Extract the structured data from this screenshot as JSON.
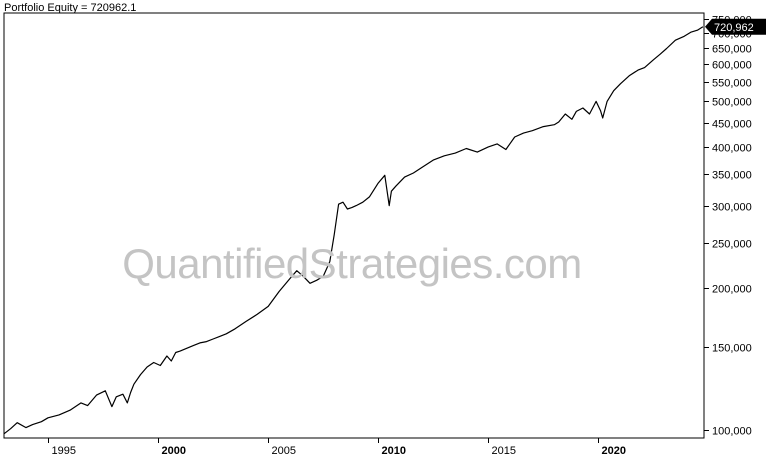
{
  "header": {
    "title": "Portfolio Equity = 720962.1"
  },
  "watermark": "QuantifiedStrategies.com",
  "colors": {
    "line": "#000000",
    "frame": "#000000",
    "background": "#ffffff",
    "watermark": "#c4c4c4",
    "last_value_bg": "#000000",
    "last_value_text": "#ffffff"
  },
  "chart_data": {
    "type": "line",
    "title": "Portfolio Equity = 720962.1",
    "xlabel": "",
    "ylabel": "",
    "log_scale_y": true,
    "grid": false,
    "xlim": [
      1993.0,
      2024.8
    ],
    "ylim": [
      96000,
      760000
    ],
    "x_ticks": [
      {
        "value": 1995,
        "label": "1995",
        "bold": false
      },
      {
        "value": 2000,
        "label": "2000",
        "bold": true
      },
      {
        "value": 2005,
        "label": "2005",
        "bold": false
      },
      {
        "value": 2010,
        "label": "2010",
        "bold": true
      },
      {
        "value": 2015,
        "label": "2015",
        "bold": false
      },
      {
        "value": 2020,
        "label": "2020",
        "bold": true
      }
    ],
    "y_ticks": [
      {
        "value": 100000,
        "label": "100,000"
      },
      {
        "value": 150000,
        "label": "150,000"
      },
      {
        "value": 200000,
        "label": "200,000"
      },
      {
        "value": 250000,
        "label": "250,000"
      },
      {
        "value": 300000,
        "label": "300,000"
      },
      {
        "value": 350000,
        "label": "350,000"
      },
      {
        "value": 400000,
        "label": "400,000"
      },
      {
        "value": 450000,
        "label": "450,000"
      },
      {
        "value": 500000,
        "label": "500,000"
      },
      {
        "value": 550000,
        "label": "550,000"
      },
      {
        "value": 600000,
        "label": "600,000"
      },
      {
        "value": 650000,
        "label": "650,000"
      },
      {
        "value": 700000,
        "label": "700,000"
      },
      {
        "value": 750000,
        "label": "750,000"
      }
    ],
    "last_value_label": "720,962",
    "last_value": 720962,
    "series": [
      {
        "x": [
          1993.0,
          1993.3,
          1993.6,
          1994.0,
          1994.3,
          1994.7,
          1995.0,
          1995.5,
          1996.0,
          1996.5,
          1996.8,
          1997.2,
          1997.6,
          1997.9,
          1998.1,
          1998.4,
          1998.6,
          1998.75,
          1998.9,
          1999.2,
          1999.5,
          1999.8,
          2000.1,
          2000.4,
          2000.6,
          2000.8,
          2001.0,
          2001.3,
          2001.6,
          2001.9,
          2002.2,
          2002.5,
          2002.8,
          2003.1,
          2003.5,
          2004.0,
          2004.5,
          2005.0,
          2005.5,
          2006.0,
          2006.3,
          2006.6,
          2006.9,
          2007.2,
          2007.5,
          2007.8,
          2008.0,
          2008.2,
          2008.4,
          2008.6,
          2008.8,
          2009.0,
          2009.3,
          2009.6,
          2010.0,
          2010.3,
          2010.5,
          2010.6,
          2010.8,
          2011.2,
          2011.6,
          2012.0,
          2012.5,
          2013.0,
          2013.5,
          2014.0,
          2014.5,
          2015.0,
          2015.4,
          2015.8,
          2016.2,
          2016.6,
          2017.0,
          2017.5,
          2018.0,
          2018.2,
          2018.5,
          2018.8,
          2019.0,
          2019.3,
          2019.6,
          2019.9,
          2020.1,
          2020.2,
          2020.4,
          2020.7,
          2021.0,
          2021.4,
          2021.8,
          2022.1,
          2022.5,
          2022.8,
          2023.1,
          2023.5,
          2023.9,
          2024.2,
          2024.5,
          2024.75
        ],
        "y": [
          98000,
          100500,
          103500,
          101000,
          102500,
          104000,
          106000,
          107500,
          110000,
          114000,
          112500,
          118500,
          121000,
          112000,
          117500,
          119000,
          114000,
          120000,
          125000,
          131000,
          136000,
          139000,
          137000,
          143500,
          140000,
          146000,
          147000,
          149000,
          151000,
          153000,
          154000,
          156000,
          158000,
          160000,
          164000,
          170000,
          176000,
          183000,
          197000,
          210000,
          218000,
          212000,
          205000,
          208000,
          212000,
          228000,
          260000,
          302000,
          305000,
          295000,
          297000,
          300000,
          305000,
          313000,
          335000,
          348000,
          300000,
          322000,
          330000,
          345000,
          352000,
          362000,
          375000,
          383000,
          388000,
          397000,
          390000,
          400000,
          406000,
          395000,
          420000,
          428000,
          433000,
          442000,
          446000,
          452000,
          470000,
          458000,
          476000,
          484000,
          470000,
          500000,
          478000,
          461000,
          500000,
          527000,
          545000,
          567000,
          583000,
          590000,
          613000,
          630000,
          648000,
          675000,
          688000,
          702000,
          709000,
          720962
        ]
      }
    ]
  }
}
